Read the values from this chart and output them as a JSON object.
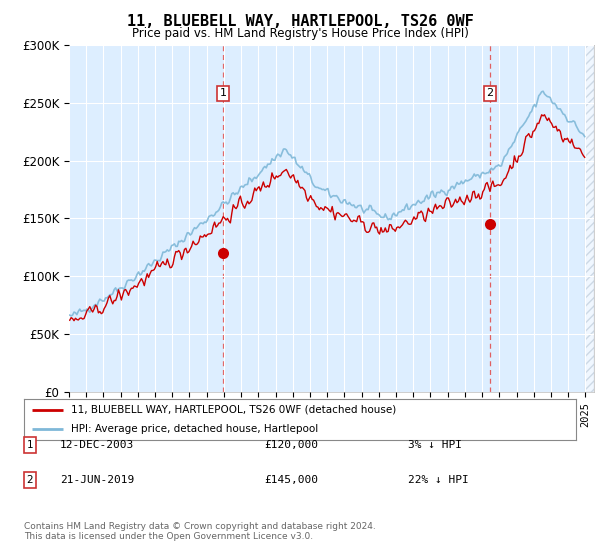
{
  "title": "11, BLUEBELL WAY, HARTLEPOOL, TS26 0WF",
  "subtitle": "Price paid vs. HM Land Registry's House Price Index (HPI)",
  "legend_line1": "11, BLUEBELL WAY, HARTLEPOOL, TS26 0WF (detached house)",
  "legend_line2": "HPI: Average price, detached house, Hartlepool",
  "transaction1_date": "12-DEC-2003",
  "transaction1_price": "£120,000",
  "transaction1_note": "3% ↓ HPI",
  "transaction2_date": "21-JUN-2019",
  "transaction2_price": "£145,000",
  "transaction2_note": "22% ↓ HPI",
  "footer": "Contains HM Land Registry data © Crown copyright and database right 2024.\nThis data is licensed under the Open Government Licence v3.0.",
  "hpi_color": "#7fb8d8",
  "price_color": "#cc0000",
  "dashed_line_color": "#e06060",
  "marker_color": "#cc0000",
  "background_plot": "#ddeeff",
  "background_fig": "#ffffff",
  "ylim": [
    0,
    300000
  ],
  "yticks": [
    0,
    50000,
    100000,
    150000,
    200000,
    250000,
    300000
  ],
  "ytick_labels": [
    "£0",
    "£50K",
    "£100K",
    "£150K",
    "£200K",
    "£250K",
    "£300K"
  ],
  "year_start": 1995,
  "year_end": 2025
}
